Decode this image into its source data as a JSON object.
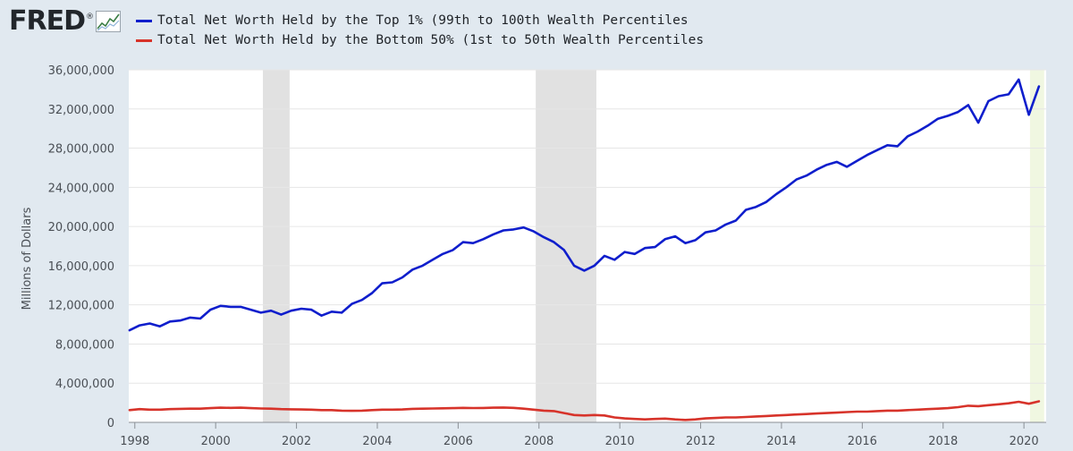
{
  "brand": {
    "logo_text": "FRED",
    "logo_reg": "®"
  },
  "icons": {
    "logo": "fred-sparkline-icon"
  },
  "colors": {
    "page_bg": "#e1e9f0",
    "plot_bg": "#ffffff",
    "series_top1": "#0f1ecc",
    "series_bottom50": "#d7332a",
    "recession": "#e1e1e1",
    "recent_highlight": "#f0f7e1"
  },
  "legend": [
    {
      "label": "Total Net Worth Held by the Top 1% (99th to 100th Wealth Percentiles",
      "color": "#0f1ecc"
    },
    {
      "label": "Total Net Worth Held by the Bottom 50% (1st to 50th Wealth Percentiles",
      "color": "#d7332a"
    }
  ],
  "chart_data": {
    "type": "line",
    "title": "",
    "xlabel": "",
    "ylabel": "Millions of Dollars",
    "xlim": [
      1997.85,
      2020.55
    ],
    "ylim": [
      0,
      36000000
    ],
    "x_ticks": [
      1998,
      2000,
      2002,
      2004,
      2006,
      2008,
      2010,
      2012,
      2014,
      2016,
      2018,
      2020
    ],
    "x_tick_labels": [
      "1998",
      "2000",
      "2002",
      "2004",
      "2006",
      "2008",
      "2010",
      "2012",
      "2014",
      "2016",
      "2018",
      "2020"
    ],
    "y_ticks": [
      0,
      4000000,
      8000000,
      12000000,
      16000000,
      20000000,
      24000000,
      28000000,
      32000000,
      36000000
    ],
    "y_tick_labels": [
      "0",
      "4,000,000",
      "8,000,000",
      "12,000,000",
      "16,000,000",
      "20,000,000",
      "24,000,000",
      "28,000,000",
      "32,000,000",
      "36,000,000"
    ],
    "grid": "horizontal",
    "legend_position": "top",
    "recession_bands": [
      [
        2001.17,
        2001.83
      ],
      [
        2007.92,
        2009.42
      ]
    ],
    "highlight_bands": [
      [
        2020.15,
        2020.5
      ]
    ],
    "series": [
      {
        "name": "Total Net Worth Held by the Top 1% (99th to 100th Wealth Percentiles",
        "x": [
          1997.87,
          1998.12,
          1998.37,
          1998.62,
          1998.87,
          1999.12,
          1999.37,
          1999.62,
          1999.87,
          2000.12,
          2000.37,
          2000.62,
          2000.87,
          2001.12,
          2001.37,
          2001.62,
          2001.87,
          2002.12,
          2002.37,
          2002.62,
          2002.87,
          2003.12,
          2003.37,
          2003.62,
          2003.87,
          2004.12,
          2004.37,
          2004.62,
          2004.87,
          2005.12,
          2005.37,
          2005.62,
          2005.87,
          2006.12,
          2006.37,
          2006.62,
          2006.87,
          2007.12,
          2007.37,
          2007.62,
          2007.87,
          2008.12,
          2008.37,
          2008.62,
          2008.87,
          2009.12,
          2009.37,
          2009.62,
          2009.87,
          2010.12,
          2010.37,
          2010.62,
          2010.87,
          2011.12,
          2011.37,
          2011.62,
          2011.87,
          2012.12,
          2012.37,
          2012.62,
          2012.87,
          2013.12,
          2013.37,
          2013.62,
          2013.87,
          2014.12,
          2014.37,
          2014.62,
          2014.87,
          2015.12,
          2015.37,
          2015.62,
          2015.87,
          2016.12,
          2016.37,
          2016.62,
          2016.87,
          2017.12,
          2017.37,
          2017.62,
          2017.87,
          2018.12,
          2018.37,
          2018.62,
          2018.87,
          2019.12,
          2019.37,
          2019.62,
          2019.87,
          2020.12,
          2020.37
        ],
        "values": [
          9400000,
          9900000,
          10100000,
          9800000,
          10300000,
          10400000,
          10700000,
          10600000,
          11500000,
          11900000,
          11800000,
          11800000,
          11500000,
          11200000,
          11400000,
          11000000,
          11400000,
          11600000,
          11500000,
          10900000,
          11300000,
          11200000,
          12100000,
          12500000,
          13200000,
          14200000,
          14300000,
          14800000,
          15600000,
          16000000,
          16600000,
          17200000,
          17600000,
          18400000,
          18300000,
          18700000,
          19200000,
          19600000,
          19700000,
          19900000,
          19500000,
          18900000,
          18400000,
          17600000,
          16000000,
          15500000,
          16000000,
          17000000,
          16600000,
          17400000,
          17200000,
          17800000,
          17900000,
          18700000,
          19000000,
          18300000,
          18600000,
          19400000,
          19600000,
          20200000,
          20600000,
          21700000,
          22000000,
          22500000,
          23300000,
          24000000,
          24800000,
          25200000,
          25800000,
          26300000,
          26600000,
          26100000,
          26700000,
          27300000,
          27800000,
          28300000,
          28200000,
          29200000,
          29700000,
          30300000,
          31000000,
          31300000,
          31700000,
          32400000,
          30600000,
          32800000,
          33300000,
          33500000,
          35000000,
          31400000,
          34300000
        ]
      },
      {
        "name": "Total Net Worth Held by the Bottom 50% (1st to 50th Wealth Percentiles",
        "x": [
          1997.87,
          1998.12,
          1998.37,
          1998.62,
          1998.87,
          1999.12,
          1999.37,
          1999.62,
          1999.87,
          2000.12,
          2000.37,
          2000.62,
          2000.87,
          2001.12,
          2001.37,
          2001.62,
          2001.87,
          2002.12,
          2002.37,
          2002.62,
          2002.87,
          2003.12,
          2003.37,
          2003.62,
          2003.87,
          2004.12,
          2004.37,
          2004.62,
          2004.87,
          2005.12,
          2005.37,
          2005.62,
          2005.87,
          2006.12,
          2006.37,
          2006.62,
          2006.87,
          2007.12,
          2007.37,
          2007.62,
          2007.87,
          2008.12,
          2008.37,
          2008.62,
          2008.87,
          2009.12,
          2009.37,
          2009.62,
          2009.87,
          2010.12,
          2010.37,
          2010.62,
          2010.87,
          2011.12,
          2011.37,
          2011.62,
          2011.87,
          2012.12,
          2012.37,
          2012.62,
          2012.87,
          2013.12,
          2013.37,
          2013.62,
          2013.87,
          2014.12,
          2014.37,
          2014.62,
          2014.87,
          2015.12,
          2015.37,
          2015.62,
          2015.87,
          2016.12,
          2016.37,
          2016.62,
          2016.87,
          2017.12,
          2017.37,
          2017.62,
          2017.87,
          2018.12,
          2018.37,
          2018.62,
          2018.87,
          2019.12,
          2019.37,
          2019.62,
          2019.87,
          2020.12,
          2020.37
        ],
        "values": [
          1250000,
          1350000,
          1300000,
          1300000,
          1350000,
          1380000,
          1400000,
          1400000,
          1450000,
          1500000,
          1480000,
          1500000,
          1450000,
          1420000,
          1400000,
          1350000,
          1330000,
          1320000,
          1300000,
          1250000,
          1250000,
          1200000,
          1180000,
          1200000,
          1250000,
          1300000,
          1300000,
          1320000,
          1380000,
          1400000,
          1420000,
          1430000,
          1450000,
          1480000,
          1460000,
          1470000,
          1500000,
          1520000,
          1480000,
          1400000,
          1300000,
          1200000,
          1150000,
          950000,
          750000,
          700000,
          750000,
          700000,
          500000,
          400000,
          350000,
          300000,
          350000,
          380000,
          300000,
          250000,
          300000,
          400000,
          450000,
          500000,
          500000,
          550000,
          600000,
          650000,
          700000,
          750000,
          800000,
          850000,
          900000,
          950000,
          1000000,
          1050000,
          1100000,
          1100000,
          1150000,
          1200000,
          1200000,
          1250000,
          1300000,
          1350000,
          1400000,
          1450000,
          1550000,
          1700000,
          1650000,
          1750000,
          1850000,
          1950000,
          2100000,
          1900000,
          2150000
        ]
      }
    ]
  }
}
